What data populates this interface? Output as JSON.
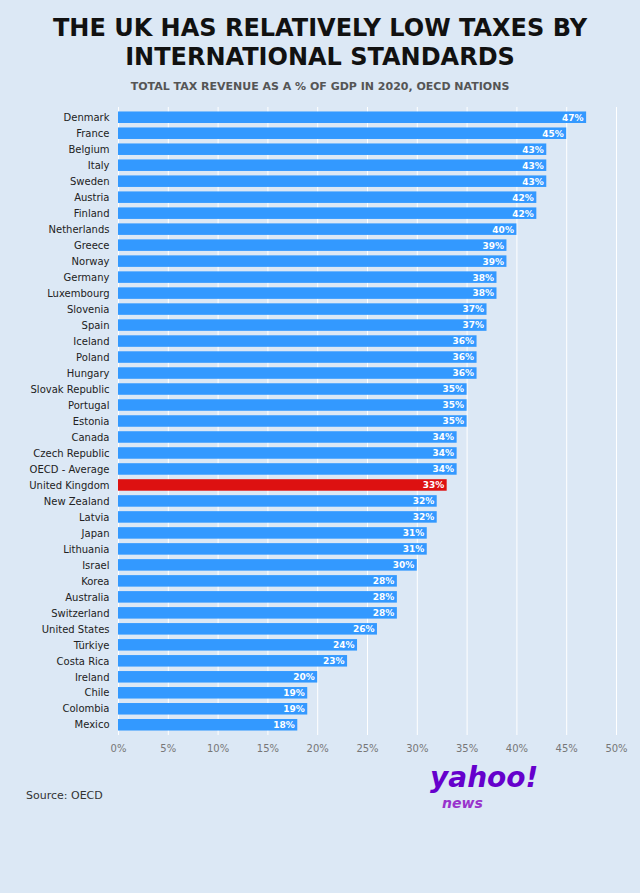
{
  "chart_data": {
    "type": "bar",
    "orientation": "horizontal",
    "title": "THE UK HAS RELATIVELY LOW TAXES BY INTERNATIONAL STANDARDS",
    "subtitle": "TOTAL TAX REVENUE AS A % OF GDP IN 2020, OECD NATIONS",
    "annotations": [
      "Source: OECD",
      "yahoo!",
      "news"
    ],
    "categories": [
      "Denmark",
      "France",
      "Belgium",
      "Italy",
      "Sweden",
      "Austria",
      "Finland",
      "Netherlands",
      "Greece",
      "Norway",
      "Germany",
      "Luxembourg",
      "Slovenia",
      "Spain",
      "Iceland",
      "Poland",
      "Hungary",
      "Slovak Republic",
      "Portugal",
      "Estonia",
      "Canada",
      "Czech Republic",
      "OECD - Average",
      "United Kingdom",
      "New Zealand",
      "Latvia",
      "Japan",
      "Lithuania",
      "Israel",
      "Korea",
      "Australia",
      "Switzerland",
      "United States",
      "Türkiye",
      "Costa Rica",
      "Ireland",
      "Chile",
      "Colombia",
      "Mexico"
    ],
    "values": [
      47,
      45,
      43,
      43,
      43,
      42,
      42,
      40,
      39,
      39,
      38,
      38,
      37,
      37,
      36,
      36,
      36,
      35,
      35,
      35,
      34,
      34,
      34,
      33,
      32,
      32,
      31,
      31,
      30,
      28,
      28,
      28,
      26,
      24,
      23,
      20,
      19,
      19,
      18
    ],
    "value_labels": [
      "47%",
      "45%",
      "43%",
      "43%",
      "43%",
      "42%",
      "42%",
      "40%",
      "39%",
      "39%",
      "38%",
      "38%",
      "37%",
      "37%",
      "36%",
      "36%",
      "36%",
      "35%",
      "35%",
      "35%",
      "34%",
      "34%",
      "34%",
      "33%",
      "32%",
      "32%",
      "31%",
      "31%",
      "30%",
      "28%",
      "28%",
      "28%",
      "26%",
      "24%",
      "23%",
      "20%",
      "19%",
      "19%",
      "18%"
    ],
    "data_labels": true,
    "colors": [
      "#3399ff",
      "#3399ff",
      "#3399ff",
      "#3399ff",
      "#3399ff",
      "#3399ff",
      "#3399ff",
      "#3399ff",
      "#3399ff",
      "#3399ff",
      "#3399ff",
      "#3399ff",
      "#3399ff",
      "#3399ff",
      "#3399ff",
      "#3399ff",
      "#3399ff",
      "#3399ff",
      "#3399ff",
      "#3399ff",
      "#3399ff",
      "#3399ff",
      "#3399ff",
      "#dd1111",
      "#3399ff",
      "#3399ff",
      "#3399ff",
      "#3399ff",
      "#3399ff",
      "#3399ff",
      "#3399ff",
      "#3399ff",
      "#3399ff",
      "#3399ff",
      "#3399ff",
      "#3399ff",
      "#3399ff",
      "#3399ff",
      "#3399ff"
    ],
    "xlim": [
      0,
      50
    ],
    "xticks": [
      {
        "value": 0,
        "label": "0%"
      },
      {
        "value": 5,
        "label": "5%"
      },
      {
        "value": 10,
        "label": "10%"
      },
      {
        "value": 15,
        "label": "15%"
      },
      {
        "value": 20,
        "label": "20%"
      },
      {
        "value": 25,
        "label": "25%"
      },
      {
        "value": 30,
        "label": "30%"
      },
      {
        "value": 35,
        "label": "35%"
      },
      {
        "value": 40,
        "label": "40%"
      },
      {
        "value": 45,
        "label": "45%"
      },
      {
        "value": 50,
        "label": "50%"
      }
    ],
    "grid": true
  }
}
